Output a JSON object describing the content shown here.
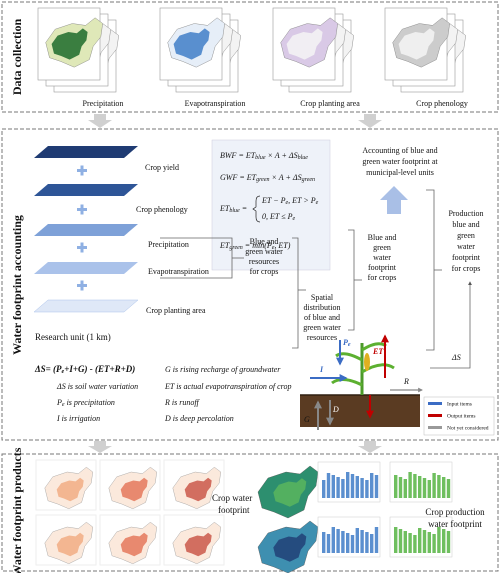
{
  "data_collection": {
    "title": "Data collection",
    "items": [
      "Precipitation",
      "Evapotranspiration",
      "Crop planting area",
      "Crop phenology"
    ]
  },
  "accounting": {
    "title": "Water footprint accounting",
    "layers": [
      "Crop yield",
      "Crop phenology",
      "Precipitation",
      "Evapotranspiration",
      "Crop planting area"
    ],
    "research_unit": "Research unit (1 km)",
    "formulas": {
      "bwf": [
        "BWF = ET",
        "blue",
        " × A + ΔS",
        "blue"
      ],
      "gwf": [
        "GWF = ET",
        "green",
        " × A + ΔS",
        "green"
      ],
      "et_blue_lhs": [
        "ET",
        "blue",
        " ="
      ],
      "et_blue_case1": [
        "ET − P",
        "e",
        ", ET > P",
        "e"
      ],
      "et_blue_case2": [
        "0, ET ≤ P",
        "e"
      ],
      "et_green": [
        "ET",
        "green",
        " = min(P",
        "e",
        ", ET)"
      ]
    },
    "resources": [
      "Blue and",
      "green water",
      "resources",
      "for crops"
    ],
    "spatial": [
      "Spatial",
      "distribution",
      "of blue and",
      "green water",
      "resources"
    ],
    "footprint": [
      "Blue and",
      "green",
      "water",
      "footprint",
      "for crops"
    ],
    "municipal": [
      "Accounting of blue and",
      "green water footprint at",
      "municipal-level units"
    ],
    "production": [
      "Production",
      "blue and",
      "green",
      "water",
      "footprint",
      "for crops"
    ],
    "balance": [
      "ΔS= (P",
      "e",
      "+I+G)  -  (ET+R+D)"
    ],
    "definitions_left": [
      [
        "ΔS is soil water variation"
      ],
      [
        "P",
        "e",
        " is precipitation"
      ],
      [
        "I is irrigation"
      ]
    ],
    "definitions_right": [
      [
        "G is rising recharge of groundwater"
      ],
      [
        "ET is actual evapotranspiration of crop"
      ],
      [
        "R is runoff"
      ],
      [
        "D is deep percolation"
      ]
    ],
    "plant_labels": {
      "pe": [
        "P",
        "e"
      ],
      "i": "I",
      "et": "ET",
      "r": "R",
      "g": "G",
      "d": "D",
      "ds": "ΔS"
    },
    "legend": [
      "Input items",
      "Output items",
      "Not yet considered"
    ]
  },
  "products": {
    "title": "Water footprint products",
    "crop_wf": [
      "Crop water",
      "footprint"
    ],
    "production_wf": [
      "Crop production",
      "water footprint"
    ]
  }
}
